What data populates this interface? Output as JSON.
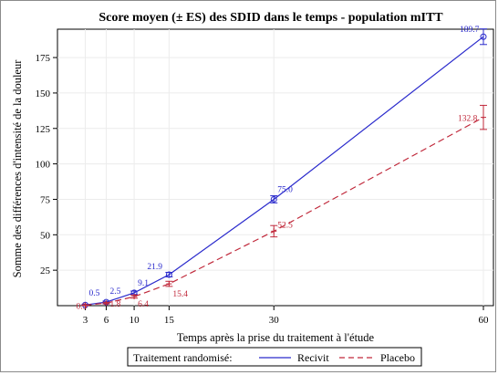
{
  "chart_data": {
    "type": "line",
    "title": "Score moyen (± ES) des SDID dans le temps - population mITT",
    "xlabel": "Temps après la prise du traitement à l'étude",
    "ylabel": "Somme des différences d'intensité de la douleur",
    "x": [
      3,
      6,
      10,
      15,
      30,
      60
    ],
    "x_ticks": [
      "3",
      "6",
      "10",
      "15",
      "30",
      "60"
    ],
    "y_ticks": [
      "25",
      "50",
      "75",
      "100",
      "125",
      "150",
      "175"
    ],
    "xlim": [
      0,
      60
    ],
    "ylim": [
      0,
      195
    ],
    "grid": true,
    "series": [
      {
        "name": "Recivit",
        "values": [
          0.5,
          2.5,
          9.1,
          21.9,
          75.0,
          189.7
        ],
        "labels": [
          "0.5",
          "2.5",
          "9.1",
          "21.9",
          "75.0",
          "189.7"
        ],
        "se": [
          0.5,
          0.7,
          1.2,
          1.6,
          2.5,
          5.5
        ],
        "color": "#2a2acc",
        "style": "solid",
        "marker": "circle"
      },
      {
        "name": "Placebo",
        "values": [
          0.3,
          1.8,
          6.4,
          15.4,
          52.5,
          132.8
        ],
        "labels": [
          "0.3",
          "1.8",
          "6.4",
          "15.4",
          "52.5",
          "132.8"
        ],
        "se": [
          0.3,
          0.6,
          1.1,
          1.8,
          4.0,
          8.5
        ],
        "color": "#c0283a",
        "style": "dashed",
        "marker": "cross"
      }
    ],
    "legend": {
      "title": "Traitement randomisé:",
      "position": "bottom"
    }
  }
}
